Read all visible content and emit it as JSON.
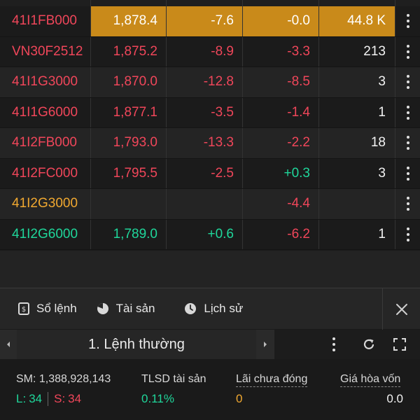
{
  "rows": [
    {
      "symbol": "41I1FB000",
      "price": "1,878.4",
      "change": "-7.6",
      "pct": "-0.0",
      "volume": "44.8 K",
      "sym_color": "red",
      "price_color": "white",
      "chg_color": "white",
      "pct_color": "white",
      "vol_color": "white",
      "highlight": true
    },
    {
      "symbol": "VN30F2512",
      "price": "1,875.2",
      "change": "-8.9",
      "pct": "-3.3",
      "volume": "213",
      "sym_color": "red",
      "price_color": "red",
      "chg_color": "red",
      "pct_color": "red",
      "vol_color": "white"
    },
    {
      "symbol": "41I1G3000",
      "price": "1,870.0",
      "change": "-12.8",
      "pct": "-8.5",
      "volume": "3",
      "sym_color": "red",
      "price_color": "red",
      "chg_color": "red",
      "pct_color": "red",
      "vol_color": "white"
    },
    {
      "symbol": "41I1G6000",
      "price": "1,877.1",
      "change": "-3.5",
      "pct": "-1.4",
      "volume": "1",
      "sym_color": "red",
      "price_color": "red",
      "chg_color": "red",
      "pct_color": "red",
      "vol_color": "white"
    },
    {
      "symbol": "41I2FB000",
      "price": "1,793.0",
      "change": "-13.3",
      "pct": "-2.2",
      "volume": "18",
      "sym_color": "red",
      "price_color": "red",
      "chg_color": "red",
      "pct_color": "red",
      "vol_color": "white"
    },
    {
      "symbol": "41I2FC000",
      "price": "1,795.5",
      "change": "-2.5",
      "pct": "+0.3",
      "volume": "3",
      "sym_color": "red",
      "price_color": "red",
      "chg_color": "red",
      "pct_color": "green",
      "vol_color": "white"
    },
    {
      "symbol": "41I2G3000",
      "price": "",
      "change": "",
      "pct": "-4.4",
      "volume": "",
      "sym_color": "orange",
      "price_color": "white",
      "chg_color": "white",
      "pct_color": "red",
      "vol_color": "white"
    },
    {
      "symbol": "41I2G6000",
      "price": "1,789.0",
      "change": "+0.6",
      "pct": "-6.2",
      "volume": "1",
      "sym_color": "green",
      "price_color": "green",
      "chg_color": "green",
      "pct_color": "red",
      "vol_color": "white"
    }
  ],
  "tabs": [
    {
      "label": "Sổ lệnh",
      "icon": "order-book-icon"
    },
    {
      "label": "Tài sản",
      "icon": "pie-chart-icon"
    },
    {
      "label": "Lịch sử",
      "icon": "clock-icon"
    }
  ],
  "order_bar": {
    "title": "1. Lệnh thường"
  },
  "summary": {
    "sm_label": "SM:",
    "sm_value": "1,388,928,143",
    "long_label": "L:",
    "long_value": "34",
    "short_label": "S:",
    "short_value": "34",
    "tlsd_label": "TLSD tài sản",
    "tlsd_value": "0.11%",
    "pnl_label": "Lãi chưa đóng",
    "pnl_value": "0",
    "breakeven_label": "Giá hòa vốn",
    "breakeven_value": "0.0"
  },
  "colors": {
    "red": "#f0465a",
    "green": "#1fd69a",
    "orange": "#f0a830",
    "highlight": "#c98a1a"
  }
}
